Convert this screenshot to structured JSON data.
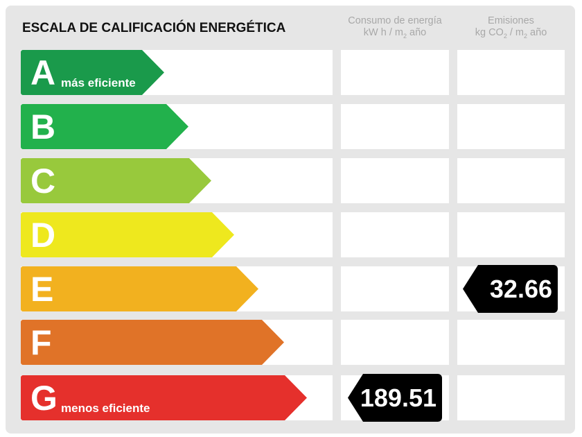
{
  "title": "ESCALA DE CALIFICACIÓN ENERGÉTICA",
  "columns": {
    "consumo": {
      "line1": "Consumo de energía",
      "line2a": "kW h / m",
      "sub": "2",
      "line2b": " año"
    },
    "emisiones": {
      "line1": "Emisiones",
      "line2a": "kg CO",
      "sub1": "2",
      "line2b": " / m",
      "sub2": "2",
      "line2c": " año"
    }
  },
  "ratings": [
    {
      "letter": "A",
      "label": "más eficiente",
      "color": "#1a9a4b"
    },
    {
      "letter": "B",
      "label": "",
      "color": "#22b14c"
    },
    {
      "letter": "C",
      "label": "",
      "color": "#98c93c"
    },
    {
      "letter": "D",
      "label": "",
      "color": "#eee81e"
    },
    {
      "letter": "E",
      "label": "",
      "color": "#f2b11f"
    },
    {
      "letter": "F",
      "label": "",
      "color": "#e07328"
    },
    {
      "letter": "G",
      "label": "menos eficiente",
      "color": "#e5302c"
    }
  ],
  "consumo_value": {
    "rating": "G",
    "value": "189.51"
  },
  "emisiones_value": {
    "rating": "E",
    "value": "32.66"
  }
}
